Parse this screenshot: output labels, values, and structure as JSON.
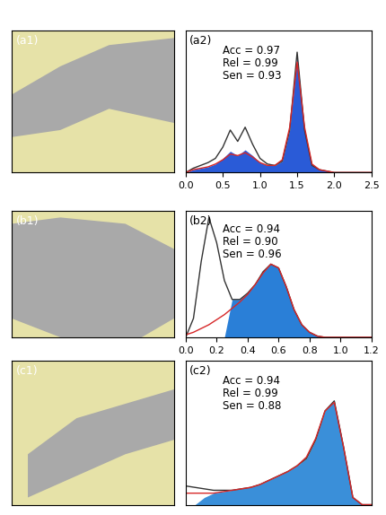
{
  "chart_data": [
    {
      "type": "map",
      "title": "(a1)",
      "tick_labels": false
    },
    {
      "type": "area",
      "title": "(a2)",
      "annotations": [
        "Acc = 0.97",
        "Rel = 0.99",
        "Sen = 0.93"
      ],
      "x": [
        0.0,
        0.1,
        0.2,
        0.3,
        0.4,
        0.5,
        0.6,
        0.7,
        0.8,
        0.9,
        1.0,
        1.1,
        1.2,
        1.3,
        1.4,
        1.5,
        1.6,
        1.7,
        1.8,
        1.9,
        2.0,
        2.1,
        2.2,
        2.3,
        2.4,
        2.5
      ],
      "series": [
        {
          "type": "area",
          "color": "#2a5bd7",
          "values": [
            0.0,
            0.02,
            0.03,
            0.04,
            0.06,
            0.1,
            0.15,
            0.12,
            0.16,
            0.12,
            0.07,
            0.05,
            0.05,
            0.08,
            0.3,
            0.82,
            0.3,
            0.05,
            0.02,
            0.01,
            0.0,
            0.0,
            0.0,
            0.0,
            0.0,
            0.0
          ]
        },
        {
          "type": "line",
          "color": "#333333",
          "values": [
            0.0,
            0.03,
            0.05,
            0.07,
            0.1,
            0.18,
            0.3,
            0.22,
            0.32,
            0.2,
            0.1,
            0.06,
            0.05,
            0.08,
            0.3,
            0.85,
            0.3,
            0.05,
            0.02,
            0.01,
            0.0,
            0.0,
            0.0,
            0.0,
            0.0,
            0.0
          ]
        },
        {
          "type": "line",
          "color": "#d62728",
          "values": [
            0.0,
            0.02,
            0.03,
            0.04,
            0.06,
            0.09,
            0.13,
            0.12,
            0.14,
            0.11,
            0.07,
            0.05,
            0.05,
            0.09,
            0.32,
            0.78,
            0.32,
            0.06,
            0.02,
            0.01,
            0.0,
            0.0,
            0.0,
            0.0,
            0.0,
            0.0
          ]
        }
      ],
      "xlim": [
        0.0,
        2.5
      ],
      "xticks": [
        0.0,
        0.5,
        1.0,
        1.5,
        2.0,
        2.5
      ],
      "ylim": [
        0,
        1
      ],
      "tick_labels": "x"
    },
    {
      "type": "map",
      "title": "(b1)",
      "tick_labels": false
    },
    {
      "type": "area",
      "title": "(b2)",
      "annotations": [
        "Acc = 0.94",
        "Rel = 0.90",
        "Sen = 0.96"
      ],
      "x": [
        0.0,
        0.05,
        0.1,
        0.15,
        0.2,
        0.25,
        0.3,
        0.35,
        0.4,
        0.45,
        0.5,
        0.55,
        0.6,
        0.65,
        0.7,
        0.75,
        0.8,
        0.85,
        0.9,
        0.95,
        1.0,
        1.05,
        1.1,
        1.15,
        1.2
      ],
      "series": [
        {
          "type": "area",
          "color": "#2a7fd7",
          "values": [
            0.0,
            0.0,
            0.0,
            0.0,
            0.0,
            0.0,
            0.3,
            0.3,
            0.35,
            0.42,
            0.52,
            0.58,
            0.55,
            0.4,
            0.22,
            0.1,
            0.04,
            0.01,
            0.0,
            0.0,
            0.0,
            0.0,
            0.0,
            0.0,
            0.0
          ]
        },
        {
          "type": "line",
          "color": "#333333",
          "values": [
            0.0,
            0.15,
            0.6,
            0.95,
            0.75,
            0.45,
            0.3,
            0.3,
            0.35,
            0.42,
            0.52,
            0.58,
            0.55,
            0.4,
            0.22,
            0.1,
            0.04,
            0.01,
            0.0,
            0.0,
            0.0,
            0.0,
            0.0,
            0.0,
            0.0
          ]
        },
        {
          "type": "line",
          "color": "#d62728",
          "values": [
            0.02,
            0.04,
            0.07,
            0.1,
            0.14,
            0.18,
            0.23,
            0.28,
            0.34,
            0.42,
            0.51,
            0.58,
            0.55,
            0.4,
            0.22,
            0.1,
            0.04,
            0.01,
            0.0,
            0.0,
            0.0,
            0.0,
            0.0,
            0.0,
            0.0
          ]
        }
      ],
      "xlim": [
        0.0,
        1.2
      ],
      "xticks": [
        0.0,
        0.2,
        0.4,
        0.6,
        0.8,
        1.0,
        1.2
      ],
      "ylim": [
        0,
        1
      ],
      "tick_labels": "x"
    },
    {
      "type": "map",
      "title": "(c1)",
      "tick_labels": false
    },
    {
      "type": "area",
      "title": "(c2)",
      "annotations": [
        "Acc = 0.94",
        "Rel = 0.99",
        "Sen = 0.88"
      ],
      "x": [
        0.0,
        0.05,
        0.1,
        0.15,
        0.2,
        0.25,
        0.3,
        0.35,
        0.4,
        0.45,
        0.5,
        0.55,
        0.6,
        0.65,
        0.7,
        0.75,
        0.8,
        0.85,
        0.9,
        0.95,
        1.0
      ],
      "series": [
        {
          "type": "area",
          "color": "#3a8fd9",
          "values": [
            0.0,
            0.0,
            0.05,
            0.08,
            0.09,
            0.1,
            0.11,
            0.12,
            0.14,
            0.17,
            0.2,
            0.23,
            0.27,
            0.32,
            0.45,
            0.65,
            0.72,
            0.4,
            0.05,
            0.0,
            0.0
          ]
        },
        {
          "type": "line",
          "color": "#333333",
          "values": [
            0.13,
            0.12,
            0.11,
            0.1,
            0.1,
            0.1,
            0.11,
            0.12,
            0.14,
            0.17,
            0.2,
            0.23,
            0.27,
            0.32,
            0.45,
            0.65,
            0.72,
            0.4,
            0.05,
            0.0,
            0.0
          ]
        },
        {
          "type": "line",
          "color": "#d62728",
          "values": [
            0.08,
            0.08,
            0.08,
            0.08,
            0.09,
            0.1,
            0.11,
            0.12,
            0.14,
            0.17,
            0.2,
            0.23,
            0.27,
            0.33,
            0.46,
            0.65,
            0.71,
            0.4,
            0.05,
            0.0,
            0.0
          ]
        }
      ],
      "xlim": [
        0.0,
        1.0
      ],
      "ylim": [
        0,
        1
      ],
      "tick_labels": false
    }
  ]
}
